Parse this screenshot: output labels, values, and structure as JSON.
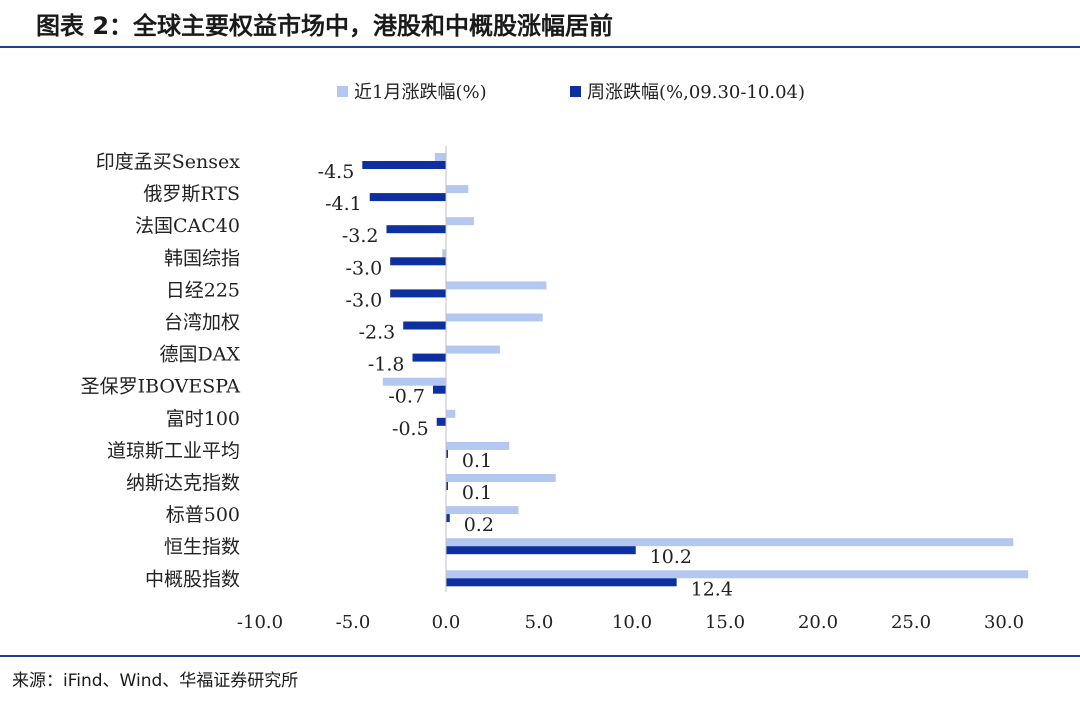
{
  "title": "图表 2：全球主要权益市场中，港股和中概股涨幅居前",
  "source": "来源：iFind、Wind、华福证券研究所",
  "colors": {
    "monthly": "#b4c7f0",
    "weekly": "#0d2fa0",
    "rule": "#1f3f8f"
  },
  "chart_data": {
    "type": "bar",
    "orientation": "horizontal",
    "categories": [
      "印度孟买Sensex",
      "俄罗斯RTS",
      "法国CAC40",
      "韩国综指",
      "日经225",
      "台湾加权",
      "德国DAX",
      "圣保罗IBOVESPA",
      "富时100",
      "道琼斯工业平均",
      "纳斯达克指数",
      "标普500",
      "恒生指数",
      "中概股指数"
    ],
    "series": [
      {
        "name": "近1月涨跌幅(%)",
        "values": [
          -0.6,
          1.2,
          1.5,
          -0.2,
          5.4,
          5.2,
          2.9,
          -3.4,
          0.5,
          3.4,
          5.9,
          3.9,
          30.5,
          31.3
        ]
      },
      {
        "name": "周涨跌幅(%,09.30-10.04)",
        "values": [
          -4.5,
          -4.1,
          -3.2,
          -3.0,
          -3.0,
          -2.3,
          -1.8,
          -0.7,
          -0.5,
          0.1,
          0.1,
          0.2,
          10.2,
          12.4
        ]
      }
    ],
    "xlim": [
      -10,
      30
    ],
    "xticks": [
      "-10.0",
      "-5.0",
      "0.0",
      "5.0",
      "10.0",
      "15.0",
      "20.0",
      "25.0",
      "30.0"
    ],
    "data_labels": [
      "-4.5",
      "-4.1",
      "-3.2",
      "-3.0",
      "-3.0",
      "-2.3",
      "-1.8",
      "-0.7",
      "-0.5",
      "0.1",
      "0.1",
      "0.2",
      "10.2",
      "12.4"
    ],
    "legend_position": "top",
    "grid": false
  }
}
